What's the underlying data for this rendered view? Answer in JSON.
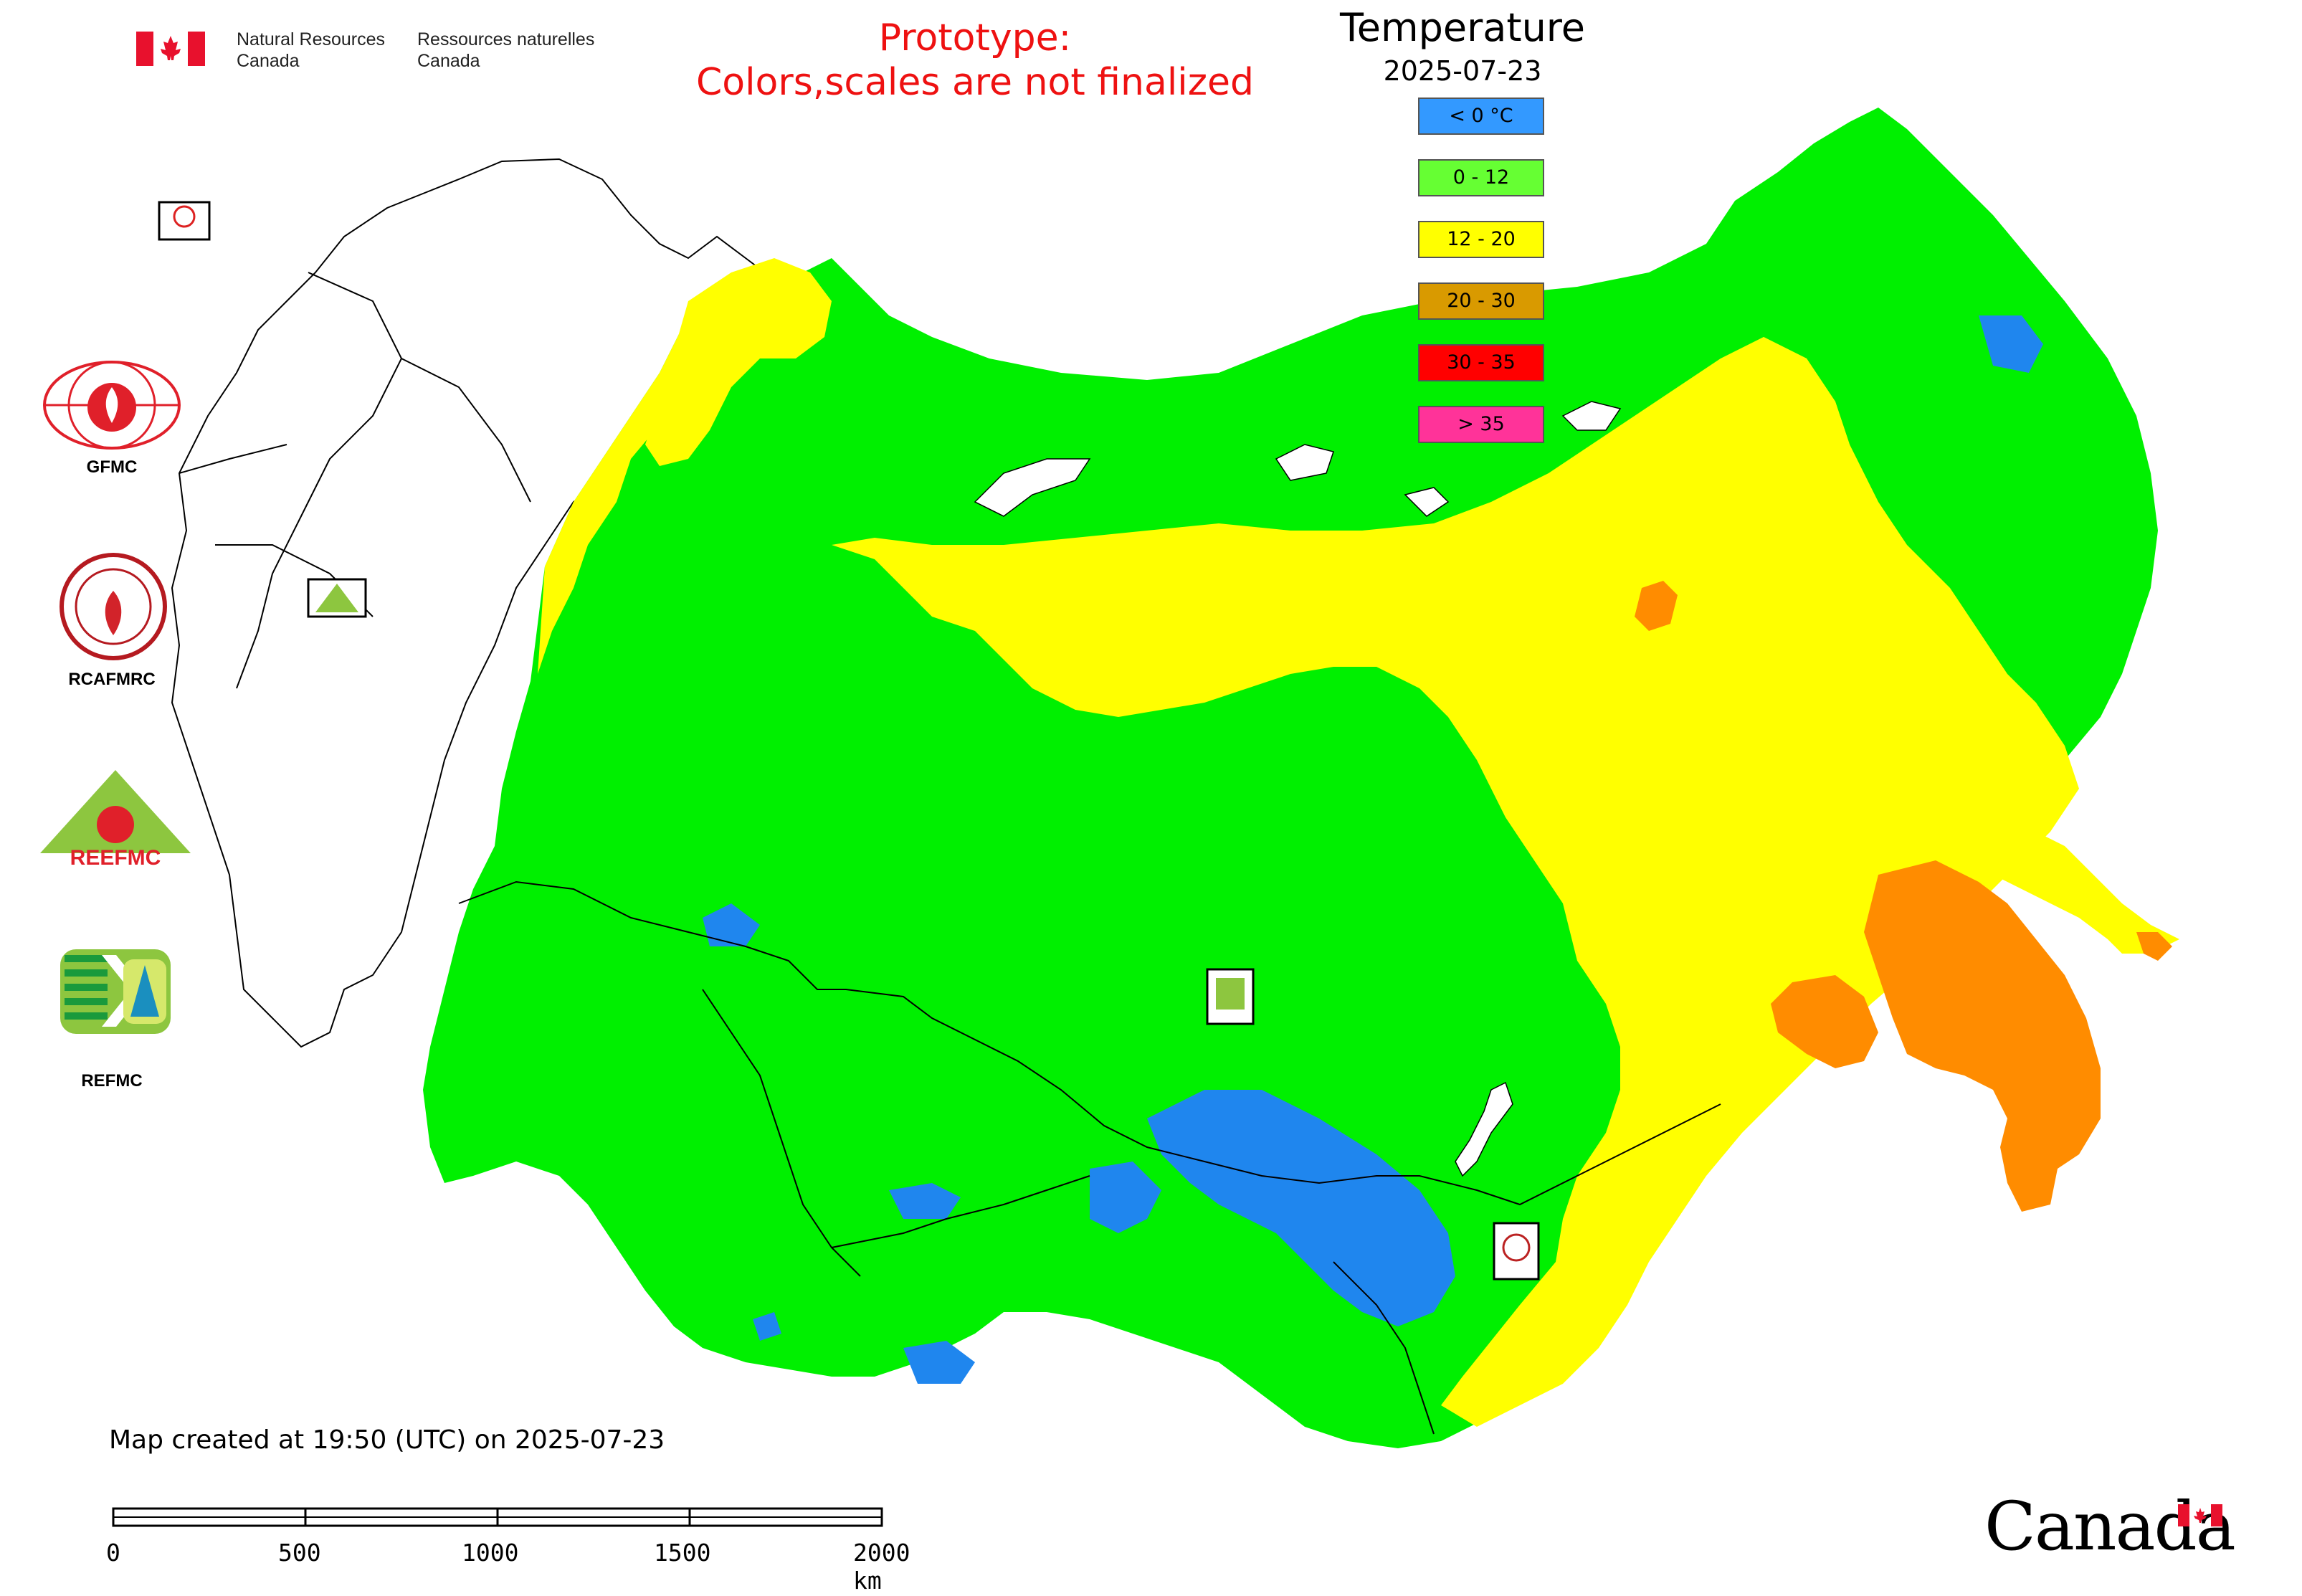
{
  "header": {
    "gov_en": [
      "Natural Resources",
      "Canada"
    ],
    "gov_fr": [
      "Ressources naturelles",
      "Canada"
    ],
    "prototype_notice": [
      "Prototype:",
      "Colors,scales are not finalized"
    ]
  },
  "legend": {
    "title": "Temperature",
    "date": "2025-07-23",
    "items": [
      {
        "label": "< 0 °C",
        "color": "#3399ff"
      },
      {
        "label": "0 - 12",
        "color": "#66ff33"
      },
      {
        "label": "12 - 20",
        "color": "#ffff00"
      },
      {
        "label": "20 - 30",
        "color": "#d99a00"
      },
      {
        "label": "30 - 35",
        "color": "#ff0000"
      },
      {
        "label": "> 35",
        "color": "#ff3399"
      }
    ]
  },
  "map_colors": {
    "cold": "#1f86ee",
    "cool": "#00f000",
    "mild": "#ffff00",
    "warm": "#ff8c00",
    "border": "#000000"
  },
  "agencies": [
    {
      "label": "GFMC",
      "icon": "gfmc-logo"
    },
    {
      "label": "RCAFMRC",
      "icon": "rcafmrc-logo"
    },
    {
      "label": "",
      "icon": "reefmc-logo",
      "logo_text": "REEFMC"
    },
    {
      "label": "REFMC",
      "icon": "refmc-logo"
    }
  ],
  "map_markers": [
    {
      "label": "GFMC",
      "icon": "gfmc-marker"
    },
    {
      "label": "REEFMC",
      "icon": "reefmc-marker"
    },
    {
      "label": "REFMC",
      "icon": "refmc-marker"
    },
    {
      "label": "RCAFMRC",
      "icon": "rcafmrc-marker"
    }
  ],
  "footer": {
    "created": "Map created at 19:50 (UTC) on 2025-07-23",
    "scale_ticks": [
      "0",
      "500",
      "1000",
      "1500",
      "2000 km"
    ],
    "wordmark": "Canada"
  }
}
